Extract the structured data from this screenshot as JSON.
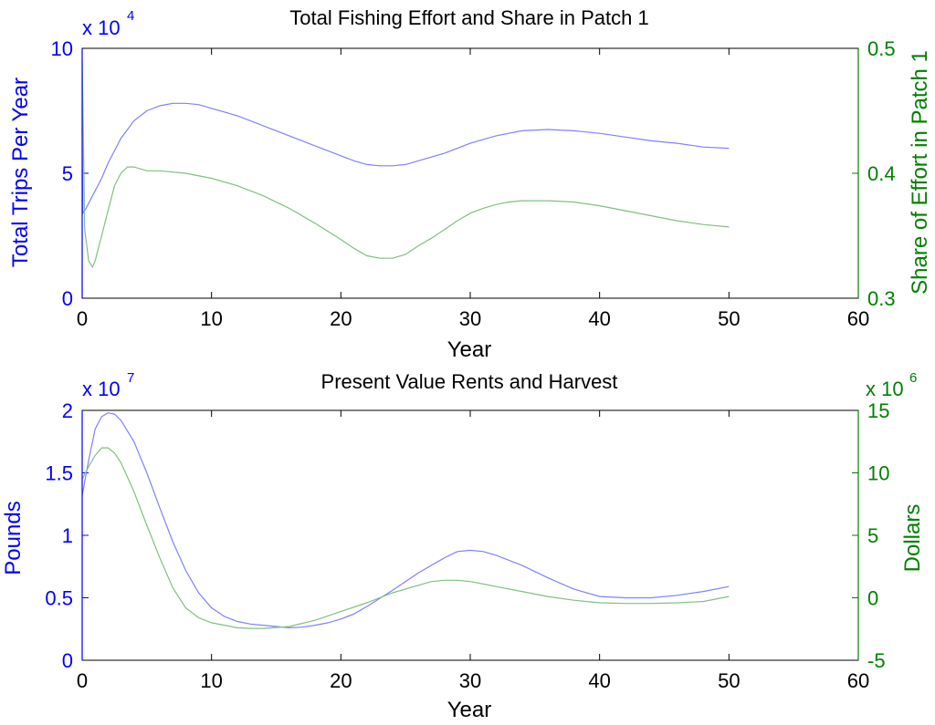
{
  "colors": {
    "left_axis": "#0000ff",
    "right_axis": "#008000",
    "line_left": "#8080ff",
    "line_right": "#80c080",
    "frame": "#000000"
  },
  "chart_data": [
    {
      "type": "line",
      "title": "Total Fishing Effort and Share in Patch 1",
      "xlabel": "Year",
      "ylabel_left": "Total Trips Per Year",
      "ylabel_right": "Share of Effort in Patch 1",
      "left_multiplier": "x 10",
      "left_exponent": "4",
      "right_multiplier": "",
      "right_exponent": "",
      "xlim": [
        0,
        60
      ],
      "ylim_left": [
        0,
        10
      ],
      "ylim_right": [
        0.3,
        0.5
      ],
      "xticks": [
        0,
        10,
        20,
        30,
        40,
        50,
        60
      ],
      "xtick_labels": [
        "0",
        "10",
        "20",
        "30",
        "40",
        "50",
        "60"
      ],
      "yticks_left": [
        0,
        5,
        10
      ],
      "ytick_labels_left": [
        "0",
        "5",
        "10"
      ],
      "yticks_right": [
        0.3,
        0.4,
        0.5
      ],
      "ytick_labels_right": [
        "0.3",
        "0.4",
        "0.5"
      ],
      "series": [
        {
          "axis": "left",
          "color": "#8080ff",
          "x": [
            0,
            0.05,
            0.3,
            0.6,
            1,
            1.5,
            2,
            3,
            4,
            5,
            6,
            7,
            8,
            9,
            10,
            12,
            14,
            16,
            18,
            20,
            21,
            22,
            23,
            24,
            25,
            26,
            28,
            30,
            32,
            34,
            36,
            38,
            40,
            42,
            44,
            46,
            48,
            50
          ],
          "y": [
            6.8,
            3.4,
            3.6,
            3.9,
            4.3,
            4.8,
            5.4,
            6.4,
            7.1,
            7.5,
            7.7,
            7.8,
            7.8,
            7.75,
            7.6,
            7.3,
            6.9,
            6.5,
            6.1,
            5.7,
            5.5,
            5.35,
            5.3,
            5.3,
            5.35,
            5.5,
            5.8,
            6.2,
            6.5,
            6.7,
            6.75,
            6.7,
            6.6,
            6.45,
            6.3,
            6.2,
            6.05,
            6.0
          ]
        },
        {
          "axis": "right",
          "color": "#80c080",
          "x": [
            0,
            0.2,
            0.5,
            0.8,
            1,
            1.5,
            2,
            2.5,
            3,
            3.5,
            4,
            5,
            6,
            8,
            10,
            12,
            14,
            16,
            18,
            20,
            21,
            22,
            23,
            24,
            25,
            26,
            27,
            28,
            29,
            30,
            31,
            32,
            33,
            34,
            35,
            36,
            38,
            40,
            42,
            44,
            46,
            48,
            50
          ],
          "y": [
            0.49,
            0.355,
            0.33,
            0.325,
            0.33,
            0.35,
            0.37,
            0.39,
            0.4,
            0.405,
            0.405,
            0.402,
            0.402,
            0.4,
            0.396,
            0.39,
            0.382,
            0.372,
            0.36,
            0.347,
            0.34,
            0.334,
            0.332,
            0.332,
            0.335,
            0.342,
            0.348,
            0.355,
            0.362,
            0.368,
            0.372,
            0.375,
            0.377,
            0.378,
            0.378,
            0.378,
            0.377,
            0.374,
            0.37,
            0.366,
            0.362,
            0.359,
            0.357
          ]
        }
      ]
    },
    {
      "type": "line",
      "title": "Present Value Rents and Harvest",
      "xlabel": "Year",
      "ylabel_left": "Pounds",
      "ylabel_right": "Dollars",
      "left_multiplier": "x 10",
      "left_exponent": "7",
      "right_multiplier": "x 10",
      "right_exponent": "6",
      "xlim": [
        0,
        60
      ],
      "ylim_left": [
        0,
        2
      ],
      "ylim_right": [
        -5,
        15
      ],
      "xticks": [
        0,
        10,
        20,
        30,
        40,
        50,
        60
      ],
      "xtick_labels": [
        "0",
        "10",
        "20",
        "30",
        "40",
        "50",
        "60"
      ],
      "yticks_left": [
        0,
        0.5,
        1,
        1.5,
        2
      ],
      "ytick_labels_left": [
        "0",
        "0.5",
        "1",
        "1.5",
        "2"
      ],
      "yticks_right": [
        -5,
        0,
        5,
        10,
        15
      ],
      "ytick_labels_right": [
        "-5",
        "0",
        "5",
        "10",
        "15"
      ],
      "series": [
        {
          "axis": "left",
          "color": "#8080ff",
          "x": [
            0,
            0.5,
            1,
            1.5,
            2,
            2.5,
            3,
            4,
            5,
            6,
            7,
            8,
            9,
            10,
            11,
            12,
            13,
            14,
            15,
            16,
            17,
            18,
            19,
            20,
            21,
            22,
            24,
            26,
            28,
            29,
            30,
            31,
            32,
            34,
            36,
            38,
            40,
            42,
            44,
            46,
            48,
            50
          ],
          "y": [
            1.32,
            1.6,
            1.85,
            1.95,
            1.98,
            1.97,
            1.92,
            1.75,
            1.5,
            1.22,
            0.95,
            0.72,
            0.54,
            0.42,
            0.35,
            0.31,
            0.29,
            0.28,
            0.27,
            0.26,
            0.265,
            0.28,
            0.3,
            0.33,
            0.37,
            0.43,
            0.56,
            0.7,
            0.82,
            0.87,
            0.88,
            0.87,
            0.84,
            0.76,
            0.66,
            0.57,
            0.51,
            0.5,
            0.5,
            0.52,
            0.55,
            0.59
          ]
        },
        {
          "axis": "right",
          "color": "#80c080",
          "x": [
            0,
            0.5,
            1,
            1.5,
            2,
            2.5,
            3,
            4,
            5,
            6,
            7,
            8,
            9,
            10,
            11,
            12,
            13,
            14,
            16,
            18,
            20,
            22,
            24,
            26,
            27,
            28,
            29,
            30,
            31,
            32,
            34,
            36,
            38,
            40,
            42,
            44,
            46,
            48,
            50
          ],
          "y": [
            9.5,
            10.5,
            11.4,
            12,
            12,
            11.6,
            10.8,
            8.5,
            5.8,
            3.2,
            0.8,
            -0.8,
            -1.6,
            -2.0,
            -2.2,
            -2.4,
            -2.45,
            -2.45,
            -2.3,
            -1.8,
            -1.1,
            -0.4,
            0.4,
            1.0,
            1.3,
            1.4,
            1.4,
            1.3,
            1.1,
            0.9,
            0.5,
            0.1,
            -0.2,
            -0.4,
            -0.45,
            -0.45,
            -0.4,
            -0.3,
            0.1
          ]
        }
      ]
    }
  ]
}
